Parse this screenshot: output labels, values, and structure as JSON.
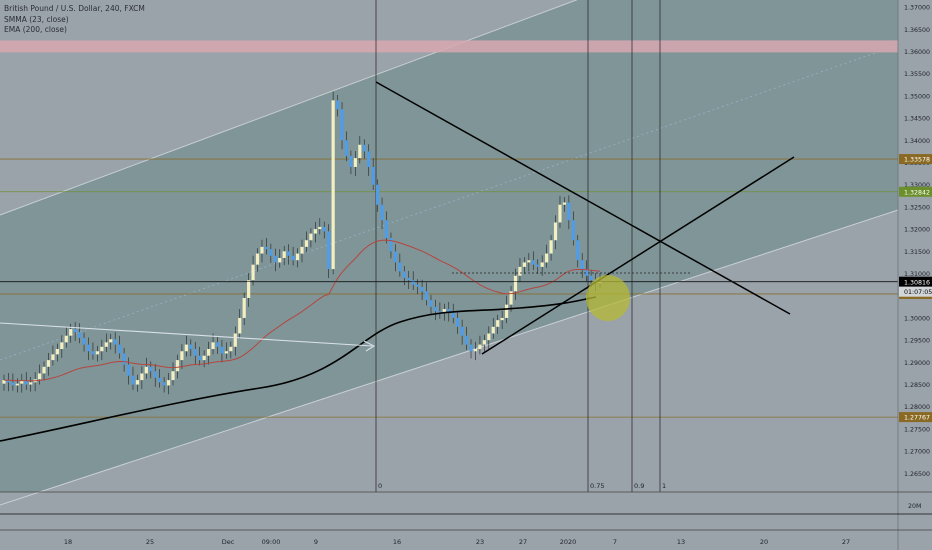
{
  "legend": {
    "title": "British Pound / U.S. Dollar, 240, FXCM",
    "smma": "SMMA (23, close)",
    "ema": "EMA (200, close)"
  },
  "colors": {
    "background": "#9aa2aa",
    "channel_fill": "#7f9598",
    "bull_candle": "#f3efc0",
    "bear_candle": "#4f9de8",
    "smma_line": "#b5463f",
    "ema_line": "#000000",
    "resistance_band": "#d8a8b0",
    "highlight_ellipse": "#b5b834",
    "level_brown": "#8a6a22",
    "level_green": "#6b8f2a",
    "axis_text": "#1e2328"
  },
  "chart_data": {
    "type": "candlestick",
    "title": "British Pound / U.S. Dollar, 240, FXCM",
    "ylim": [
      1.2608,
      1.3716
    ],
    "y_ticks": [
      "1.37000",
      "1.36500",
      "1.36000",
      "1.35500",
      "1.35000",
      "1.34500",
      "1.34000",
      "1.33500",
      "1.33000",
      "1.32500",
      "1.32000",
      "1.31500",
      "1.31000",
      "1.30500",
      "1.30000",
      "1.29500",
      "1.29000",
      "1.28500",
      "1.28000",
      "1.27500",
      "1.27000",
      "1.26500"
    ],
    "x_ticks": [
      "18",
      "25",
      "Dec",
      "09:00",
      "9",
      "16",
      "23",
      "27",
      "2020",
      "7",
      "13",
      "20",
      "27"
    ],
    "price_labels": [
      {
        "value": 1.33578,
        "text": "1.33578",
        "color": "#8a6a22"
      },
      {
        "value": 1.32842,
        "text": "1.32842",
        "color": "#6b8f2a"
      },
      {
        "value": 1.30816,
        "text": "1.30816",
        "color": "#000000"
      },
      {
        "value": 1.3054,
        "text": "1.30540",
        "color": "#8a6a22"
      },
      {
        "value": 1.27767,
        "text": "1.27767",
        "color": "#8a6a22"
      }
    ],
    "countdown": "01:07:05",
    "volume_label": "20M",
    "fib_labels": [
      "0",
      "0.75",
      "0.9",
      "1"
    ],
    "close_series": [
      1.286,
      1.2855,
      1.2848,
      1.2852,
      1.2858,
      1.285,
      1.2855,
      1.2862,
      1.2875,
      1.289,
      1.2905,
      1.2918,
      1.293,
      1.2945,
      1.296,
      1.2975,
      1.2968,
      1.2955,
      1.294,
      1.2925,
      1.2918,
      1.2925,
      1.2935,
      1.2945,
      1.2952,
      1.294,
      1.292,
      1.2895,
      1.287,
      1.285,
      1.286,
      1.2875,
      1.289,
      1.288,
      1.2865,
      1.2855,
      1.2848,
      1.286,
      1.288,
      1.2905,
      1.2925,
      1.294,
      1.293,
      1.2915,
      1.2905,
      1.2915,
      1.293,
      1.2945,
      1.2935,
      1.292,
      1.2925,
      1.2935,
      1.2965,
      1.3,
      1.3045,
      1.3085,
      1.312,
      1.3145,
      1.316,
      1.3155,
      1.314,
      1.3125,
      1.3135,
      1.315,
      1.314,
      1.313,
      1.3145,
      1.316,
      1.3175,
      1.319,
      1.32,
      1.3205,
      1.3195,
      1.311,
      1.349,
      1.347,
      1.34,
      1.3365,
      1.334,
      1.336,
      1.339,
      1.3375,
      1.334,
      1.33,
      1.3255,
      1.322,
      1.318,
      1.315,
      1.3125,
      1.3105,
      1.309,
      1.3085,
      1.3075,
      1.307,
      1.306,
      1.304,
      1.3025,
      1.3015,
      1.301,
      1.302,
      1.3012,
      1.3,
      1.298,
      1.296,
      1.294,
      1.2925,
      1.293,
      1.294,
      1.295,
      1.2965,
      1.298,
      1.2995,
      1.3,
      1.303,
      1.306,
      1.3095,
      1.3115,
      1.3125,
      1.313,
      1.312,
      1.3115,
      1.3125,
      1.3145,
      1.3175,
      1.3215,
      1.3255,
      1.326,
      1.322,
      1.3175,
      1.313,
      1.311,
      1.3095,
      1.3085,
      1.308,
      1.3081
    ]
  }
}
